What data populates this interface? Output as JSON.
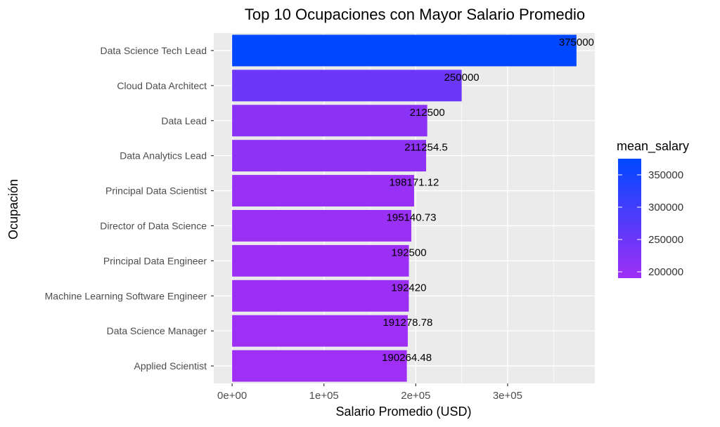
{
  "chart_data": {
    "type": "bar",
    "orientation": "horizontal",
    "title": "Top 10 Ocupaciones con Mayor Salario Promedio",
    "xlabel": "Salario Promedio (USD)",
    "ylabel": "Ocupación",
    "categories": [
      "Data Science Tech Lead",
      "Cloud Data Architect",
      "Data Lead",
      "Data Analytics Lead",
      "Principal Data Scientist",
      "Director of Data Science",
      "Principal Data Engineer",
      "Machine Learning Software Engineer",
      "Data Science Manager",
      "Applied Scientist"
    ],
    "values": [
      375000,
      250000,
      212500,
      211254.5,
      198171.12,
      195140.73,
      192500,
      192420,
      191278.78,
      190264.48
    ],
    "value_labels": [
      "375000",
      "250000",
      "212500",
      "211254.5",
      "198171.12",
      "195140.73",
      "192500",
      "192420",
      "191278.78",
      "190264.48"
    ],
    "xlim": [
      -20000,
      395000
    ],
    "xticks": [
      0,
      100000,
      200000,
      300000
    ],
    "xtick_labels": [
      "0e+00",
      "1e+05",
      "2e+05",
      "3e+05"
    ],
    "grid": true,
    "legend": {
      "title": "mean_salary",
      "position": "right",
      "ticks": [
        200000,
        250000,
        300000,
        350000
      ],
      "tick_labels": [
        "200000",
        "250000",
        "300000",
        "350000"
      ],
      "range": [
        190264.48,
        375000
      ],
      "color_low": "#9f2ff5",
      "color_high": "#0048ff"
    },
    "colors": {
      "panel": "#ebebeb",
      "grid": "#ffffff"
    }
  }
}
